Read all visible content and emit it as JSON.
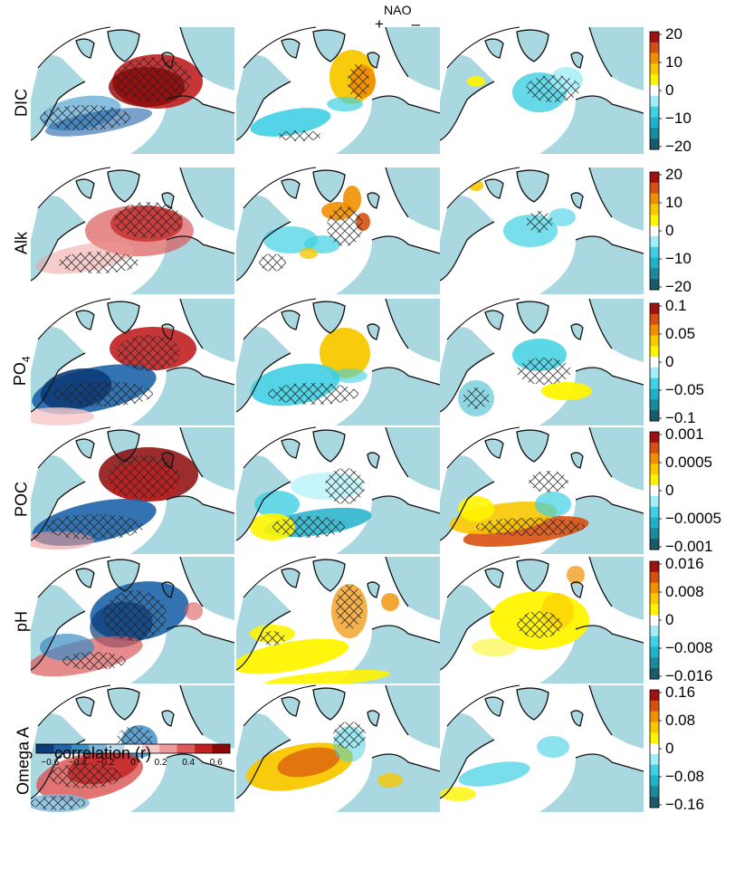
{
  "header": {
    "left_sign": "+",
    "label": "NAO",
    "right_sign": "–"
  },
  "colors": {
    "land": "#a9d8e0",
    "coast": "#111111",
    "hatch": "#222222",
    "diverging": [
      "#0c3c78",
      "#1e64a8",
      "#3a8cc4",
      "#7ab8dc",
      "#b8dcee",
      "#ffffff",
      "#f7c8c8",
      "#ee9a9a",
      "#dc5a5a",
      "#c02020",
      "#8a0808"
    ],
    "anomaly": [
      "#1a5a6a",
      "#1a8a9a",
      "#20b0c8",
      "#40d0e4",
      "#a0eef8",
      "#ffffff",
      "#fff400",
      "#f8c800",
      "#f09000",
      "#d85010",
      "#a01010"
    ]
  },
  "chart_data": {
    "type": "heatmap",
    "grid": {
      "rows": 6,
      "columns": 3
    },
    "panels": [
      {
        "variable": "DIC",
        "colorbar": {
          "ticks": [
            "20",
            "10",
            "0",
            "−10",
            "−20"
          ],
          "range": [
            -20,
            20
          ]
        }
      },
      {
        "variable": "Alk",
        "colorbar": {
          "ticks": [
            "20",
            "10",
            "0",
            "−10",
            "−20"
          ],
          "range": [
            -20,
            20
          ]
        }
      },
      {
        "variable_base": "PO",
        "variable_sub": "4",
        "colorbar": {
          "ticks": [
            "0.1",
            "0.05",
            "0",
            "−0.05",
            "−0.1"
          ],
          "range": [
            -0.1,
            0.1
          ]
        }
      },
      {
        "variable": "POC",
        "colorbar": {
          "ticks": [
            "0.001",
            "0.0005",
            "0",
            "−0.0005",
            "−0.001"
          ],
          "range": [
            -0.001,
            0.001
          ]
        }
      },
      {
        "variable": "pH",
        "colorbar": {
          "ticks": [
            "0.016",
            "0.008",
            "0",
            "−0.008",
            "−0.016"
          ],
          "range": [
            -0.016,
            0.016
          ]
        }
      },
      {
        "variable": "Omega A",
        "colorbar": {
          "ticks": [
            "0.16",
            "0.08",
            "0",
            "−0.08",
            "−0.16"
          ],
          "range": [
            -0.16,
            0.16
          ]
        }
      }
    ],
    "correlation_colorbar": {
      "title": "correlation (r)",
      "ticks": [
        "−0.6",
        "−0.4",
        "−0.2",
        "0",
        "0.2",
        "0.4",
        "0.6"
      ],
      "range": [
        -0.7,
        0.7
      ]
    }
  }
}
